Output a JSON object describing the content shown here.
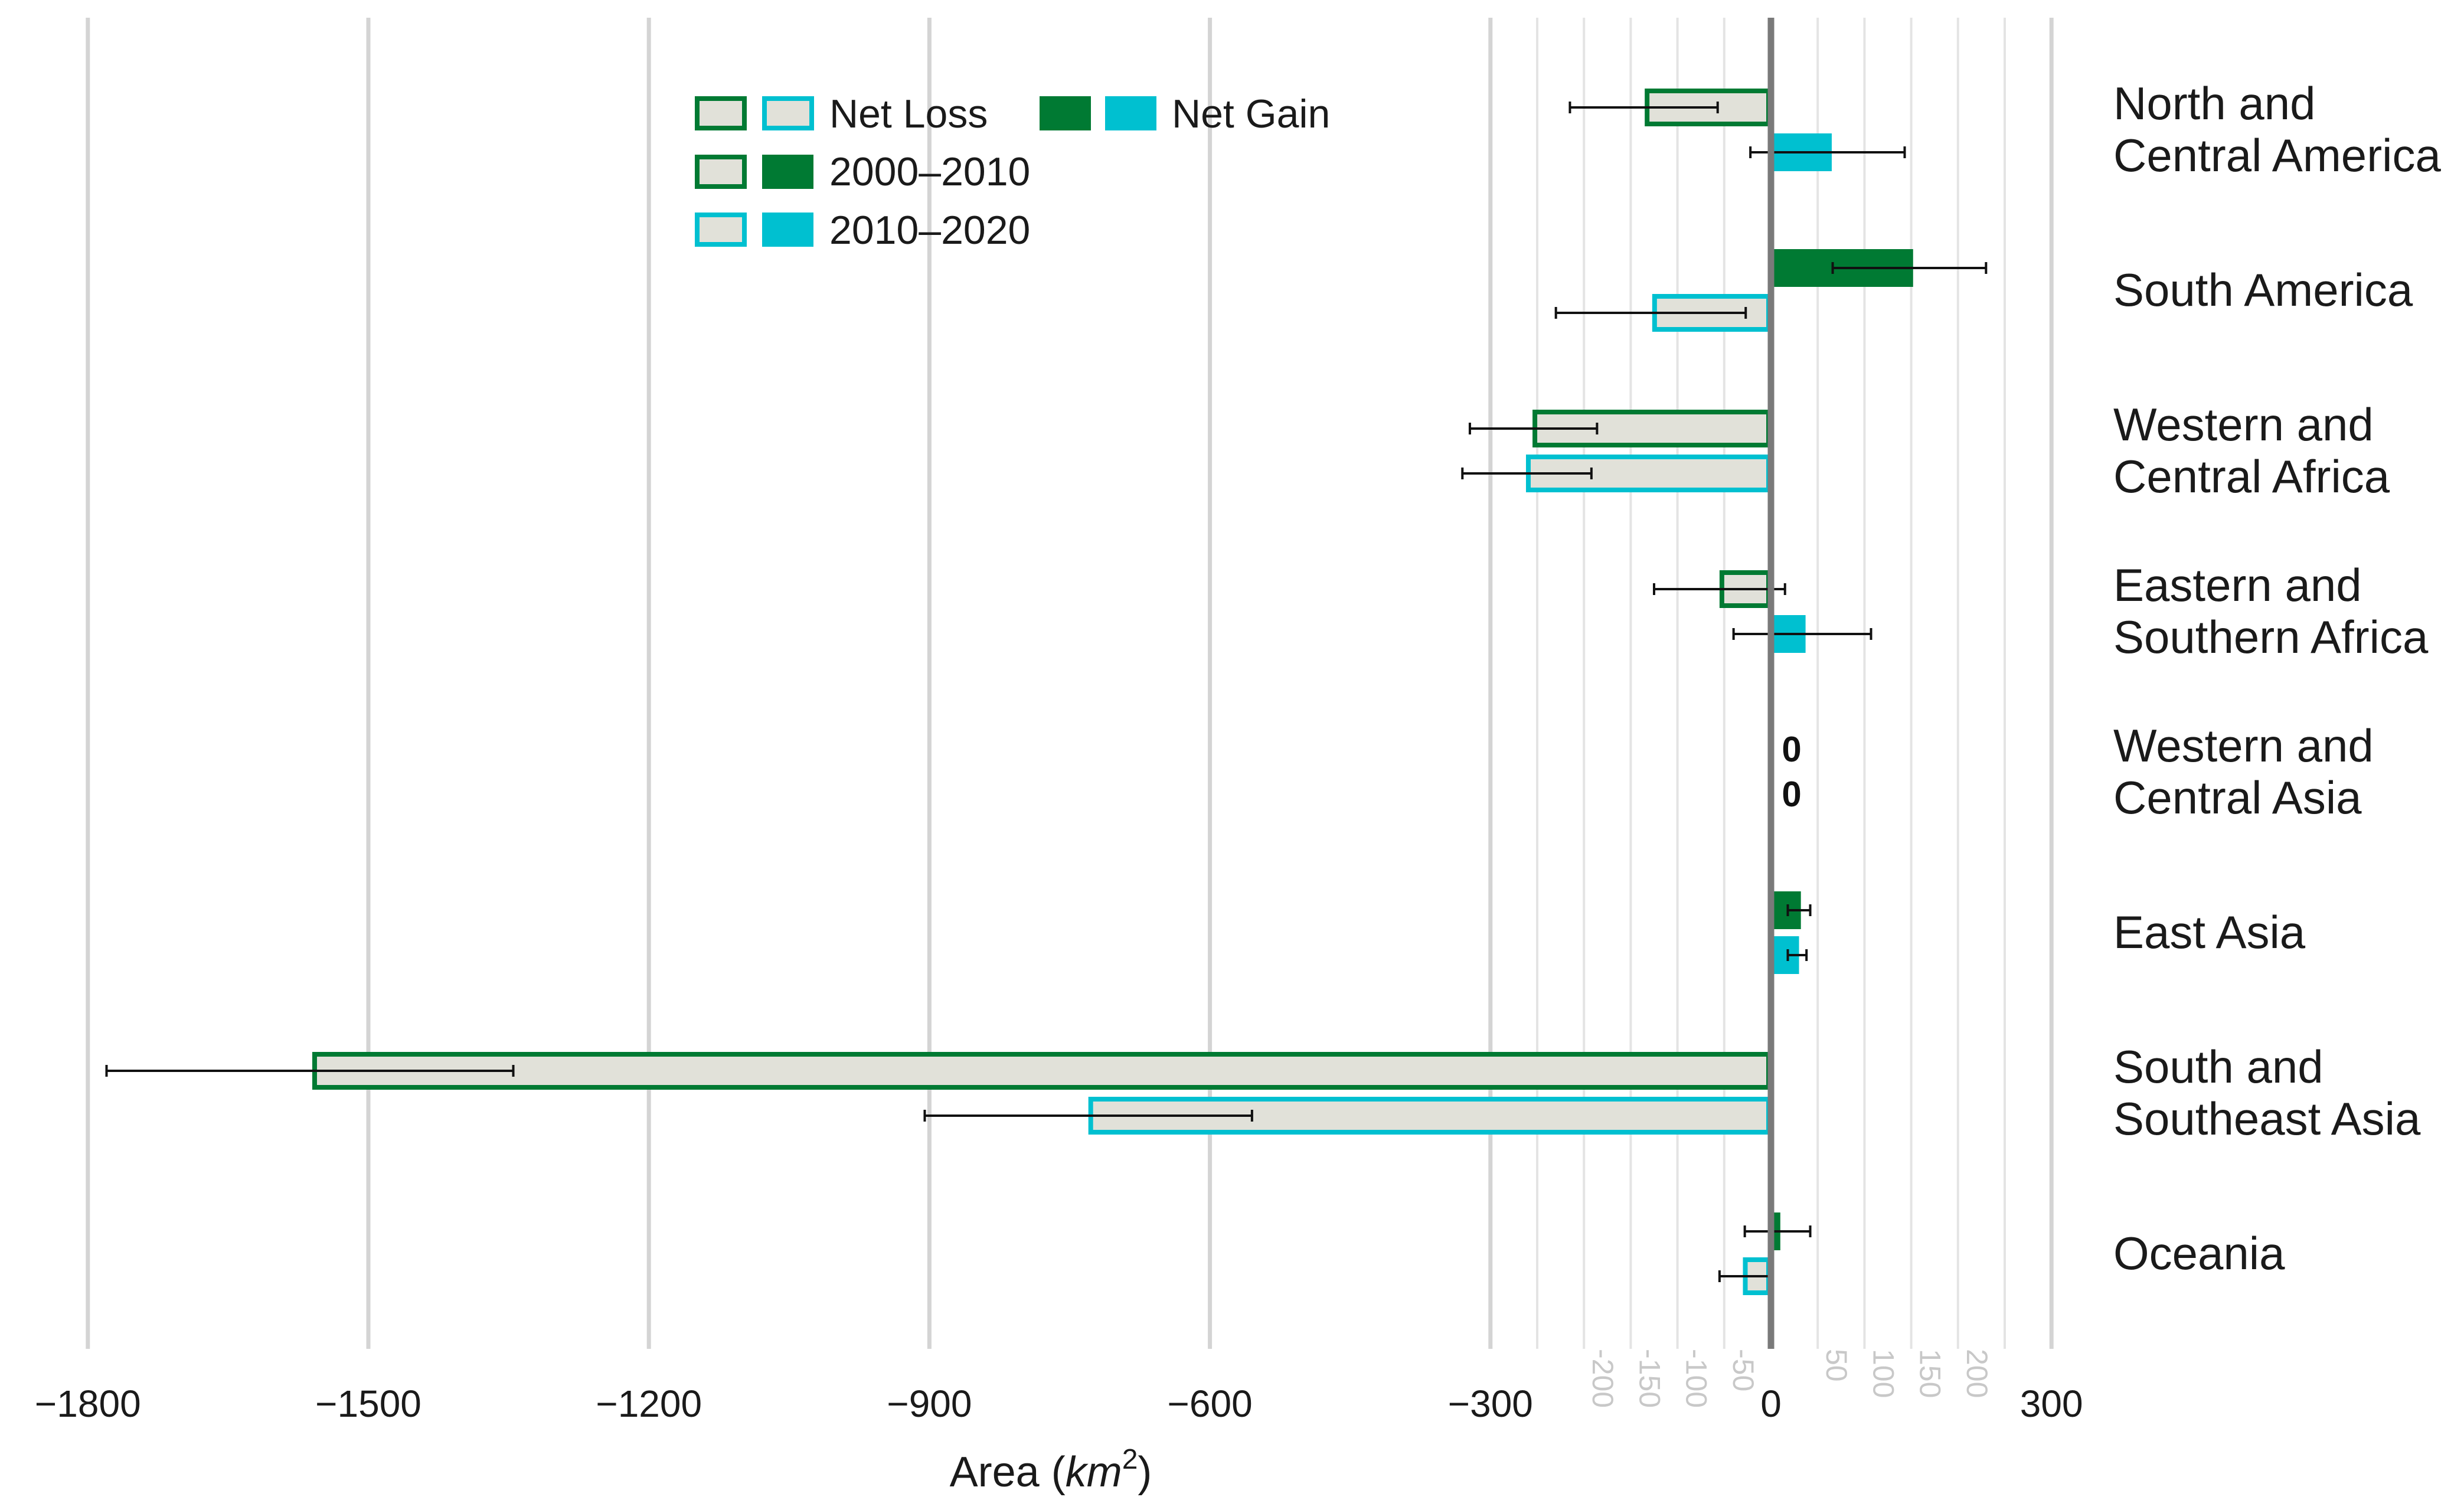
{
  "chart_data": {
    "type": "bar",
    "orientation": "horizontal",
    "xlabel": {
      "prefix": "Area (",
      "unit": "km",
      "exponent": "2",
      "suffix": ")"
    },
    "xlim": [
      -1900,
      330
    ],
    "major_ticks": [
      -1800,
      -1500,
      -1200,
      -900,
      -600,
      -300,
      0,
      300
    ],
    "major_tick_labels": [
      "−1800",
      "−1500",
      "−1200",
      "−900",
      "−600",
      "−300",
      "0",
      "300"
    ],
    "minor_ticks": [
      -250,
      -200,
      -150,
      -100,
      -50,
      50,
      100,
      150,
      200,
      250
    ],
    "minor_tick_labels": [
      {
        "value": -200,
        "label": "-200"
      },
      {
        "value": -150,
        "label": "-150"
      },
      {
        "value": -100,
        "label": "-100"
      },
      {
        "value": -50,
        "label": "-50"
      },
      {
        "value": 50,
        "label": "50"
      },
      {
        "value": 100,
        "label": "100"
      },
      {
        "value": 150,
        "label": "150"
      },
      {
        "value": 200,
        "label": "200"
      }
    ],
    "grid": true,
    "legend_position": "top",
    "colors": {
      "p2000": "#007a33",
      "p2010": "#00c0d0",
      "loss_fill": "#e1e1d9",
      "grid_major": "#d4d4d4",
      "grid_minor": "#e4e4e4",
      "zero_axis": "#7a7a7a",
      "error_bar": "#111111"
    },
    "legend": {
      "net_loss": "Net Loss",
      "net_gain": "Net Gain",
      "period_2000_2010": "2000–2010",
      "period_2010_2020": "2010–2020"
    },
    "regions": [
      {
        "label_lines": [
          "North and",
          "Central America"
        ],
        "p2000": {
          "value": -135,
          "err_low": -215,
          "err_high": -57
        },
        "p2010": {
          "value": 65,
          "err_low": -22,
          "err_high": 143
        }
      },
      {
        "label_lines": [
          "South America"
        ],
        "p2000": {
          "value": 152,
          "err_low": 66,
          "err_high": 230
        },
        "p2010": {
          "value": -127,
          "err_low": -230,
          "err_high": -27
        }
      },
      {
        "label_lines": [
          "Western and",
          "Central Africa"
        ],
        "p2000": {
          "value": -255,
          "err_low": -322,
          "err_high": -186
        },
        "p2010": {
          "value": -262,
          "err_low": -330,
          "err_high": -192
        }
      },
      {
        "label_lines": [
          "Eastern and",
          "Southern Africa"
        ],
        "p2000": {
          "value": -55,
          "err_low": -125,
          "err_high": 15
        },
        "p2010": {
          "value": 37,
          "err_low": -40,
          "err_high": 107
        }
      },
      {
        "label_lines": [
          "Western and",
          "Central Asia"
        ],
        "p2000": {
          "value": 0,
          "zero_label": "0"
        },
        "p2010": {
          "value": 0,
          "zero_label": "0"
        }
      },
      {
        "label_lines": [
          "East Asia"
        ],
        "p2000": {
          "value": 32,
          "err_low": 18,
          "err_high": 42
        },
        "p2010": {
          "value": 30,
          "err_low": 18,
          "err_high": 38
        }
      },
      {
        "label_lines": [
          "South and",
          "Southeast Asia"
        ],
        "p2000": {
          "value": -1560,
          "err_low": -1780,
          "err_high": -1345
        },
        "p2010": {
          "value": -730,
          "err_low": -905,
          "err_high": -555
        }
      },
      {
        "label_lines": [
          "Oceania"
        ],
        "p2000": {
          "value": 10,
          "err_low": -28,
          "err_high": 42
        },
        "p2010": {
          "value": -30,
          "err_low": -55,
          "err_high": 0
        }
      }
    ]
  }
}
